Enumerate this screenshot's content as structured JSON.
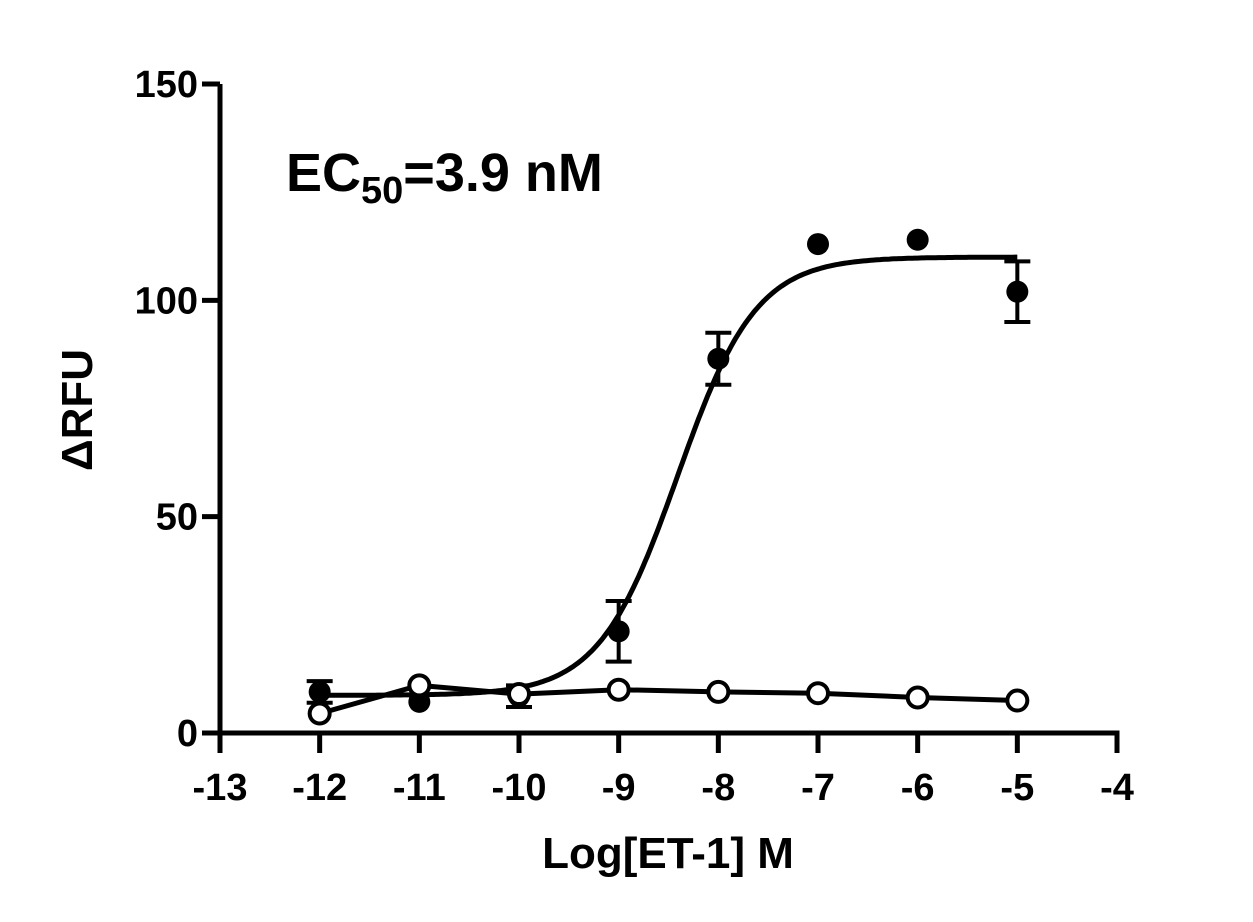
{
  "chart_data": {
    "type": "scatter",
    "title": "",
    "xlabel": "Log[ET-1] M",
    "ylabel": "ΔRFU",
    "xlim": [
      -13,
      -4
    ],
    "ylim": [
      0,
      150
    ],
    "xticks": [
      -13,
      -12,
      -11,
      -10,
      -9,
      -8,
      -7,
      -6,
      -5,
      -4
    ],
    "yticks": [
      0,
      50,
      100,
      150
    ],
    "xtick_labels": [
      "-13",
      "-12",
      "-11",
      "-10",
      "-9",
      "-8",
      "-7",
      "-6",
      "-5",
      "-4"
    ],
    "ytick_labels": [
      "0",
      "50",
      "100",
      "150"
    ],
    "grid": false,
    "annotation": {
      "main": "EC",
      "sub": "50",
      "rest": "=3.9 nM"
    },
    "series": [
      {
        "marker": "filled-circle",
        "fit": "sigmoidal",
        "fit_params": {
          "bottom": 8.7,
          "top": 110,
          "log_ec50": -8.41,
          "hill": 1.1
        },
        "x": [
          -12,
          -11,
          -10,
          -9,
          -8,
          -7,
          -6,
          -5
        ],
        "y": [
          9.5,
          7.2,
          8.5,
          23.5,
          86.5,
          113,
          114,
          102
        ],
        "error": [
          2.5,
          0,
          2.5,
          7,
          6,
          0,
          0,
          7
        ]
      },
      {
        "marker": "open-circle",
        "fit": "line",
        "x": [
          -12,
          -11,
          -10,
          -9,
          -8,
          -7,
          -6,
          -5
        ],
        "y": [
          4.5,
          11,
          9,
          10,
          9.5,
          9.2,
          8.2,
          7.5
        ],
        "error": [
          0,
          0,
          0,
          0,
          0,
          0,
          0,
          0
        ]
      }
    ]
  }
}
